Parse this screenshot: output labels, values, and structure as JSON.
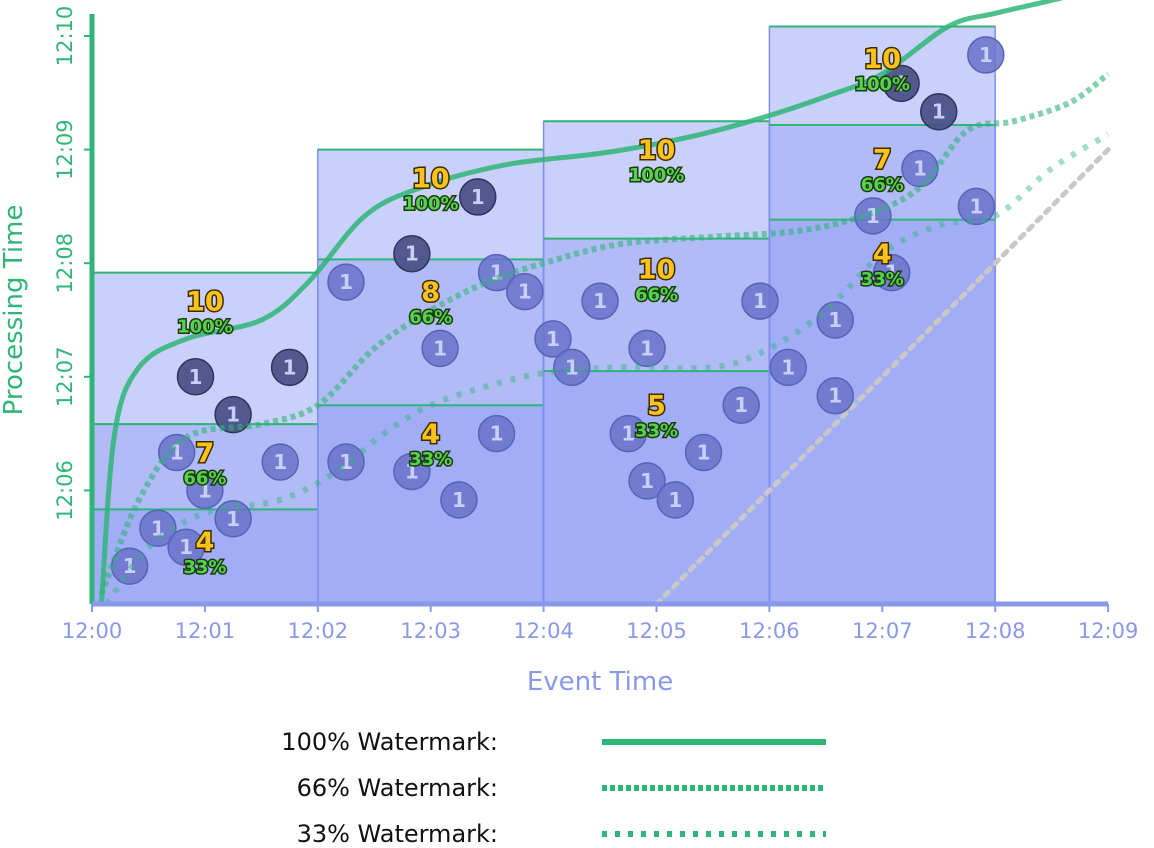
{
  "chart_data": {
    "type": "diagram",
    "xlabel": "Event Time",
    "ylabel": "Processing Time",
    "x_ticks": [
      "12:00",
      "12:01",
      "12:02",
      "12:03",
      "12:04",
      "12:05",
      "12:06",
      "12:07",
      "12:08",
      "12:09"
    ],
    "y_ticks": [
      "12:06",
      "12:07",
      "12:08",
      "12:09",
      "12:10"
    ],
    "colors": {
      "watermark": "#2fb577",
      "axis_x": "#8a98ea",
      "axis_y": "#2fb577",
      "pane": "#7f8ff0",
      "count": "#ffc21a",
      "pct": "#55d24e"
    },
    "windows": [
      {
        "start": "12:00",
        "end": "12:02",
        "panes": [
          {
            "top": "12:07:55",
            "count": "10",
            "pct": "100%",
            "label_x": "12:01",
            "label_y": "12:07:35"
          },
          {
            "top": "12:06:35",
            "count": "7",
            "pct": "66%",
            "label_x": "12:01",
            "label_y": "12:06:15"
          },
          {
            "top": "12:05:50",
            "count": "4",
            "pct": "33%",
            "label_x": "12:01",
            "label_y": "12:05:28"
          }
        ]
      },
      {
        "start": "12:02",
        "end": "12:04",
        "panes": [
          {
            "top": "12:09:00",
            "count": "10",
            "pct": "100%",
            "label_x": "12:03",
            "label_y": "12:08:40"
          },
          {
            "top": "12:08:02",
            "count": "8",
            "pct": "66%",
            "label_x": "12:03",
            "label_y": "12:07:40"
          },
          {
            "top": "12:06:45",
            "count": "4",
            "pct": "33%",
            "label_x": "12:03",
            "label_y": "12:06:25"
          }
        ]
      },
      {
        "start": "12:04",
        "end": "12:06",
        "panes": [
          {
            "top": "12:09:15",
            "count": "10",
            "pct": "100%",
            "label_x": "12:05",
            "label_y": "12:08:55"
          },
          {
            "top": "12:08:13",
            "count": "10",
            "pct": "66%",
            "label_x": "12:05",
            "label_y": "12:07:52"
          },
          {
            "top": "12:07:03",
            "count": "5",
            "pct": "33%",
            "label_x": "12:05",
            "label_y": "12:06:40"
          }
        ]
      },
      {
        "start": "12:06",
        "end": "12:08",
        "panes": [
          {
            "top": "12:10:05",
            "count": "10",
            "pct": "100%",
            "label_x": "12:07",
            "label_y": "12:09:43"
          },
          {
            "top": "12:09:13",
            "count": "7",
            "pct": "66%",
            "label_x": "12:07",
            "label_y": "12:08:50"
          },
          {
            "top": "12:08:23",
            "count": "4",
            "pct": "33%",
            "label_x": "12:07",
            "label_y": "12:08:00"
          }
        ]
      }
    ],
    "events": {
      "label": "1",
      "points": [
        {
          "x": "12:00:20",
          "y": "12:05:20",
          "late": false
        },
        {
          "x": "12:00:35",
          "y": "12:05:40",
          "late": false
        },
        {
          "x": "12:00:45",
          "y": "12:06:20",
          "late": false
        },
        {
          "x": "12:00:50",
          "y": "12:05:30",
          "late": false
        },
        {
          "x": "12:01:00",
          "y": "12:06:00",
          "late": false
        },
        {
          "x": "12:01:15",
          "y": "12:05:45",
          "late": false
        },
        {
          "x": "12:00:55",
          "y": "12:07:00",
          "late": true
        },
        {
          "x": "12:01:15",
          "y": "12:06:40",
          "late": true
        },
        {
          "x": "12:01:45",
          "y": "12:07:05",
          "late": true
        },
        {
          "x": "12:01:40",
          "y": "12:06:15",
          "late": false
        },
        {
          "x": "12:02:15",
          "y": "12:06:15",
          "late": false
        },
        {
          "x": "12:02:15",
          "y": "12:07:50",
          "late": false
        },
        {
          "x": "12:02:50",
          "y": "12:06:10",
          "late": false
        },
        {
          "x": "12:02:50",
          "y": "12:08:05",
          "late": true
        },
        {
          "x": "12:03:05",
          "y": "12:07:15",
          "late": false
        },
        {
          "x": "12:03:15",
          "y": "12:05:55",
          "late": false
        },
        {
          "x": "12:03:25",
          "y": "12:08:35",
          "late": true
        },
        {
          "x": "12:03:35",
          "y": "12:06:30",
          "late": false
        },
        {
          "x": "12:03:35",
          "y": "12:07:55",
          "late": false
        },
        {
          "x": "12:03:50",
          "y": "12:07:45",
          "late": false
        },
        {
          "x": "12:04:05",
          "y": "12:07:20",
          "late": false
        },
        {
          "x": "12:04:15",
          "y": "12:07:05",
          "late": false
        },
        {
          "x": "12:04:30",
          "y": "12:07:40",
          "late": false
        },
        {
          "x": "12:04:45",
          "y": "12:06:30",
          "late": false
        },
        {
          "x": "12:04:55",
          "y": "12:07:15",
          "late": false
        },
        {
          "x": "12:04:55",
          "y": "12:06:05",
          "late": false
        },
        {
          "x": "12:05:10",
          "y": "12:05:55",
          "late": false
        },
        {
          "x": "12:05:25",
          "y": "12:06:20",
          "late": false
        },
        {
          "x": "12:05:45",
          "y": "12:06:45",
          "late": false
        },
        {
          "x": "12:05:55",
          "y": "12:07:40",
          "late": false
        },
        {
          "x": "12:06:10",
          "y": "12:07:05",
          "late": false
        },
        {
          "x": "12:06:35",
          "y": "12:07:30",
          "late": false
        },
        {
          "x": "12:06:35",
          "y": "12:06:50",
          "late": false
        },
        {
          "x": "12:06:55",
          "y": "12:08:25",
          "late": false
        },
        {
          "x": "12:07:05",
          "y": "12:07:55",
          "late": false
        },
        {
          "x": "12:07:20",
          "y": "12:08:50",
          "late": false
        },
        {
          "x": "12:07:10",
          "y": "12:09:35",
          "late": true
        },
        {
          "x": "12:07:30",
          "y": "12:09:20",
          "late": true
        },
        {
          "x": "12:07:50",
          "y": "12:08:30",
          "late": false
        },
        {
          "x": "12:07:55",
          "y": "12:09:50",
          "late": false
        }
      ]
    },
    "watermarks": [
      {
        "name": "100% Watermark:",
        "style": "solid",
        "color": "#2fb577",
        "points": [
          [
            "12:00:05",
            "12:05:00"
          ],
          [
            "12:00:12",
            "12:06:30"
          ],
          [
            "12:00:25",
            "12:07:05"
          ],
          [
            "12:00:50",
            "12:07:20"
          ],
          [
            "12:01:30",
            "12:07:30"
          ],
          [
            "12:01:55",
            "12:07:50"
          ],
          [
            "12:02:25",
            "12:08:25"
          ],
          [
            "12:02:55",
            "12:08:40"
          ],
          [
            "12:03:40",
            "12:08:52"
          ],
          [
            "12:04:30",
            "12:08:58"
          ],
          [
            "12:05:10",
            "12:09:05"
          ],
          [
            "12:05:50",
            "12:09:15"
          ],
          [
            "12:06:30",
            "12:09:28"
          ],
          [
            "12:07:00",
            "12:09:40"
          ],
          [
            "12:07:35",
            "12:10:05"
          ],
          [
            "12:08:00",
            "12:10:12"
          ],
          [
            "12:08:35",
            "12:10:20"
          ],
          [
            "12:09:00",
            "12:10:27"
          ]
        ]
      },
      {
        "name": "66% Watermark:",
        "style": "dense-dot",
        "color": "#2fb577",
        "points": [
          [
            "12:00:05",
            "12:05:05"
          ],
          [
            "12:00:25",
            "12:05:55"
          ],
          [
            "12:00:50",
            "12:06:28"
          ],
          [
            "12:01:30",
            "12:06:35"
          ],
          [
            "12:02:00",
            "12:06:45"
          ],
          [
            "12:02:30",
            "12:07:15"
          ],
          [
            "12:03:00",
            "12:07:35"
          ],
          [
            "12:03:30",
            "12:07:50"
          ],
          [
            "12:04:00",
            "12:08:00"
          ],
          [
            "12:04:40",
            "12:08:10"
          ],
          [
            "12:05:30",
            "12:08:14"
          ],
          [
            "12:06:15",
            "12:08:17"
          ],
          [
            "12:06:50",
            "12:08:25"
          ],
          [
            "12:07:20",
            "12:08:40"
          ],
          [
            "12:07:45",
            "12:09:10"
          ],
          [
            "12:08:10",
            "12:09:15"
          ],
          [
            "12:08:40",
            "12:09:25"
          ],
          [
            "12:09:00",
            "12:09:40"
          ]
        ]
      },
      {
        "name": "33% Watermark:",
        "style": "sparse-dot",
        "color": "#2fb577",
        "points": [
          [
            "12:00:08",
            "12:05:00"
          ],
          [
            "12:00:30",
            "12:05:30"
          ],
          [
            "12:01:00",
            "12:05:48"
          ],
          [
            "12:01:40",
            "12:05:55"
          ],
          [
            "12:02:10",
            "12:06:10"
          ],
          [
            "12:02:35",
            "12:06:30"
          ],
          [
            "12:03:00",
            "12:06:45"
          ],
          [
            "12:03:30",
            "12:06:55"
          ],
          [
            "12:04:00",
            "12:07:02"
          ],
          [
            "12:04:40",
            "12:07:05"
          ],
          [
            "12:05:30",
            "12:07:05"
          ],
          [
            "12:06:00",
            "12:07:15"
          ],
          [
            "12:06:30",
            "12:07:35"
          ],
          [
            "12:07:00",
            "12:08:05"
          ],
          [
            "12:07:30",
            "12:08:20"
          ],
          [
            "12:08:00",
            "12:08:25"
          ],
          [
            "12:08:30",
            "12:08:50"
          ],
          [
            "12:09:00",
            "12:09:08"
          ]
        ]
      }
    ],
    "ideal_line": {
      "style": "dotted",
      "color": "#c8c8c8",
      "points": [
        [
          "12:05:00",
          "12:05:00"
        ],
        [
          "12:06:00",
          "12:06:00"
        ],
        [
          "12:07:00",
          "12:07:00"
        ],
        [
          "12:08:00",
          "12:08:00"
        ],
        [
          "12:09:00",
          "12:09:00"
        ]
      ]
    }
  }
}
